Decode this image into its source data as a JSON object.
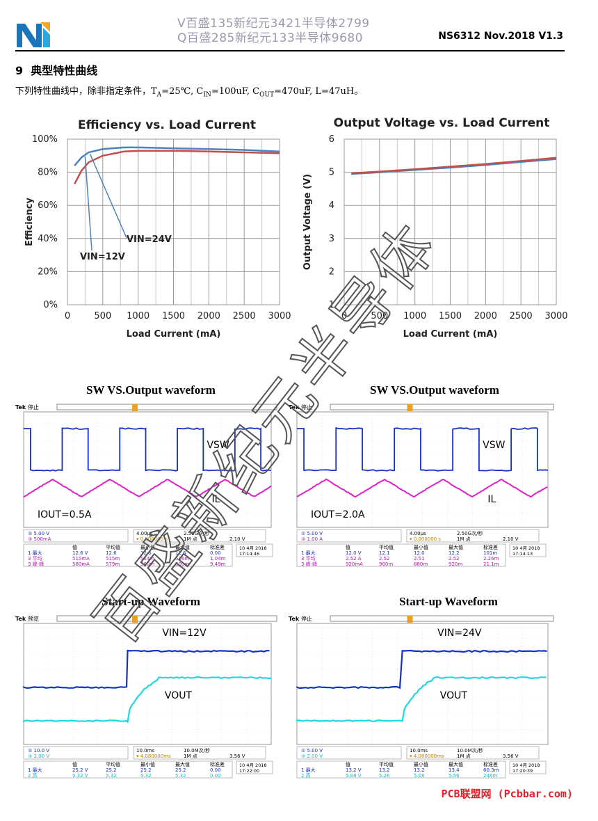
{
  "header": {
    "watermark_line1": "V百盛135新纪元3421半导体2799",
    "watermark_line2": "Q百盛285新纪元133半导体9680",
    "doc_id": "NS6312 Nov.2018 V1.3"
  },
  "section": {
    "number": "9",
    "title": "典型特性曲线"
  },
  "intro": {
    "prefix": "下列特性曲线中，除非指定条件，T",
    "ta_sub": "A",
    "ta_val": "=25℃, C",
    "cin_sub": "IN",
    "cin_val": "=100uF, C",
    "cout_sub": "OUT",
    "cout_val": "=470uF, L=47uH。"
  },
  "chart_data": [
    {
      "type": "line",
      "title": "Efficiency vs. Load Current",
      "xlabel": "Load Current (mA)",
      "ylabel": "Efficiency",
      "xlim": [
        0,
        3000
      ],
      "ylim": [
        0,
        100
      ],
      "x_ticks": [
        "0",
        "500",
        "1000",
        "1500",
        "2000",
        "2500",
        "3000"
      ],
      "y_ticks": [
        "0%",
        "20%",
        "40%",
        "60%",
        "80%",
        "100%"
      ],
      "grid": true,
      "series": [
        {
          "name": "VIN=12V",
          "color": "#4f81bd",
          "x": [
            100,
            200,
            300,
            500,
            800,
            1000,
            1500,
            2000,
            2500,
            3000
          ],
          "y": [
            84,
            89,
            92,
            94,
            95,
            95,
            94.5,
            94,
            93.5,
            92.5
          ]
        },
        {
          "name": "VIN=24V",
          "color": "#c0504d",
          "x": [
            100,
            200,
            300,
            500,
            800,
            1000,
            1500,
            2000,
            2500,
            3000
          ],
          "y": [
            73,
            81,
            86,
            90,
            92.5,
            93,
            93,
            92.5,
            92,
            91.5
          ]
        }
      ]
    },
    {
      "type": "line",
      "title": "Output Voltage vs. Load Current",
      "xlabel": "Load Current (mA)",
      "ylabel": "Output Voltage (V)",
      "xlim": [
        0,
        3000
      ],
      "ylim": [
        1,
        6
      ],
      "x_ticks": [
        "0",
        "500",
        "1000",
        "1500",
        "2000",
        "2500",
        "3000"
      ],
      "y_ticks": [
        "1",
        "2",
        "3",
        "4",
        "5",
        "6"
      ],
      "grid": true,
      "series": [
        {
          "color": "#4f81bd",
          "x": [
            100,
            500,
            1000,
            1500,
            2000,
            2500,
            3000
          ],
          "y": [
            4.95,
            5.0,
            5.07,
            5.14,
            5.22,
            5.31,
            5.4
          ]
        },
        {
          "color": "#c0504d",
          "x": [
            100,
            500,
            1000,
            1500,
            2000,
            2500,
            3000
          ],
          "y": [
            4.97,
            5.02,
            5.09,
            5.17,
            5.25,
            5.34,
            5.44
          ]
        }
      ]
    }
  ],
  "figures": {
    "sw_left_title": "SW VS.Output waveform",
    "sw_right_title": "SW VS.Output waveform",
    "start_left_title": "Start-up Waveform",
    "start_right_title": "Start-up Waveform"
  },
  "scopes": [
    {
      "brand": "Tek",
      "state": "停止",
      "labels": {
        "a": "VSW",
        "b": "IL",
        "c": "IOUT=0.5A"
      },
      "ch1": "5.00 V",
      "ch3": "500mA",
      "time": "4.00μs",
      "rate": "2.50G次/秒",
      "trig": "0.000000 s",
      "points": "1M 点",
      "trig_level": "2.10 V",
      "headers": [
        "值",
        "平均值",
        "最小值",
        "最大值",
        "标准差"
      ],
      "rows": [
        {
          "ch": "1",
          "name": "最大",
          "vals": [
            "12.6 V",
            "12.6",
            "12.6",
            "12.6",
            "0.00"
          ]
        },
        {
          "ch": "3",
          "name": "平均",
          "vals": [
            "515mA",
            "515m",
            "514m",
            "516m",
            "1.04m"
          ]
        },
        {
          "ch": "3",
          "name": "峰-峰",
          "vals": [
            "580mA",
            "579m",
            "560m",
            "600m",
            "9.49m"
          ]
        }
      ],
      "date": "10 4月 2018",
      "clock": "17:14:46"
    },
    {
      "brand": "Tek",
      "state": "停止",
      "labels": {
        "a": "VSW",
        "b": "IL",
        "c": "IOUT=2.0A"
      },
      "ch1": "5.00 V",
      "ch3": "1.00 A",
      "time": "4.00μs",
      "rate": "2.50G次/秒",
      "trig": "0.000000 s",
      "points": "1M 点",
      "trig_level": "2.10 V",
      "headers": [
        "值",
        "平均值",
        "最小值",
        "最大值",
        "标准差"
      ],
      "rows": [
        {
          "ch": "1",
          "name": "最大",
          "vals": [
            "12.0 V",
            "12.1",
            "12.0",
            "12.2",
            "101m"
          ]
        },
        {
          "ch": "3",
          "name": "平均",
          "vals": [
            "2.52 A",
            "2.52",
            "2.51",
            "2.52",
            "2.26m"
          ]
        },
        {
          "ch": "3",
          "name": "峰-峰",
          "vals": [
            "920mA",
            "900m",
            "880m",
            "920m",
            "21.1m"
          ]
        }
      ],
      "date": "10 4月 2018",
      "clock": "17:14:13"
    },
    {
      "brand": "Tek",
      "state": "预览",
      "labels": {
        "a": "VIN=12V",
        "b": "VOUT",
        "c": ""
      },
      "ch1": "10.0 V",
      "ch3": "2.00 V",
      "time": "10.0ms",
      "rate": "10.0M次/秒",
      "trig": "4.080000ms",
      "points": "1M 点",
      "trig_level": "3.56 V",
      "headers": [
        "值",
        "平均值",
        "最小值",
        "最大值",
        "标准差"
      ],
      "rows": [
        {
          "ch": "1",
          "name": "最大",
          "vals": [
            "25.2 V",
            "25.2",
            "25.2",
            "25.2",
            "0.00"
          ]
        },
        {
          "ch": "2",
          "name": "高",
          "vals": [
            "5.32 V",
            "5.32",
            "5.32",
            "5.32",
            "0.00"
          ]
        }
      ],
      "date": "10 4月 2018",
      "clock": "17:22:00"
    },
    {
      "brand": "Tek",
      "state": "停止",
      "labels": {
        "a": "VIN=24V",
        "b": "VOUT",
        "c": ""
      },
      "ch1": "5.00 V",
      "ch3": "2.00 V",
      "time": "10.0ms",
      "rate": "10.0M次/秒",
      "trig": "4.080000ms",
      "points": "1M 点",
      "trig_level": "3.56 V",
      "headers": [
        "值",
        "平均值",
        "最小值",
        "最大值",
        "标准差"
      ],
      "rows": [
        {
          "ch": "1",
          "name": "最大",
          "vals": [
            "13.2 V",
            "13.2",
            "13.2",
            "13.4",
            "60.3m"
          ]
        },
        {
          "ch": "2",
          "name": "高",
          "vals": [
            "5.08 V",
            "5.26",
            "5.08",
            "5.56",
            "248m"
          ]
        }
      ],
      "date": "10 4月 2018",
      "clock": "17:20:39"
    }
  ],
  "watermark": {
    "text": "百盛新纪元半导体"
  },
  "footer": {
    "brand": "PCB联盟网 (Pcbbar.com)"
  }
}
